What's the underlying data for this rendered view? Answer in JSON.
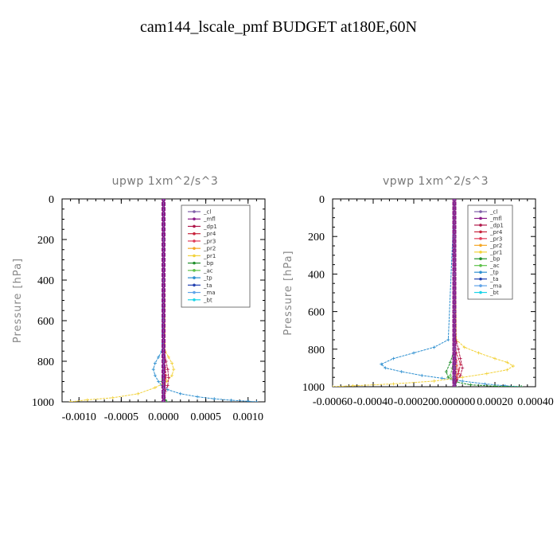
{
  "page_title": "cam144_lscale_pmf  BUDGET at180E,60N",
  "chart_data": [
    {
      "type": "line",
      "title": "upwp   1xm^2/s^3",
      "ylabel": "Pressure [hPa]",
      "xlim": [
        -0.0012,
        0.0012
      ],
      "ylim": [
        1000,
        0
      ],
      "x_ticks": [
        -0.001,
        -0.0005,
        0.0,
        0.0005,
        0.001
      ],
      "x_tick_labels": [
        "-0.0010",
        "-0.0005",
        "0.0000",
        "0.0005",
        "0.0010"
      ],
      "y_ticks": [
        0,
        200,
        400,
        600,
        800,
        1000
      ],
      "y_tick_labels": [
        "0",
        "200",
        "400",
        "600",
        "800",
        "1000"
      ],
      "legend_position": "top-right",
      "series": [
        {
          "name": "_cl",
          "color": "#7f5fa8",
          "x": [
            0,
            0,
            0,
            0,
            0,
            0,
            0,
            0
          ],
          "y": [
            0,
            200,
            400,
            600,
            800,
            900,
            950,
            1000
          ]
        },
        {
          "name": "_mfl",
          "color": "#8b1a89",
          "x": [
            0,
            0,
            0,
            0,
            0,
            0,
            0,
            0,
            0,
            0,
            0,
            0,
            0,
            0,
            0,
            0,
            0,
            0,
            0,
            0,
            0,
            0,
            0,
            0,
            0,
            0,
            0,
            0,
            0,
            0,
            0,
            0,
            0,
            0,
            0,
            0,
            0,
            0,
            0,
            0,
            0
          ],
          "y": [
            0,
            25,
            50,
            75,
            100,
            125,
            150,
            175,
            200,
            225,
            250,
            275,
            300,
            325,
            350,
            375,
            400,
            425,
            450,
            475,
            500,
            525,
            550,
            575,
            600,
            625,
            650,
            675,
            700,
            725,
            750,
            775,
            800,
            825,
            850,
            875,
            900,
            925,
            950,
            975,
            1000
          ]
        },
        {
          "name": "_dp1",
          "color": "#b0174a",
          "x": [
            0,
            0,
            0,
            1e-05,
            3e-05,
            5e-05,
            6e-05,
            5e-05,
            2e-05,
            1e-05,
            0
          ],
          "y": [
            0,
            400,
            700,
            760,
            800,
            840,
            880,
            920,
            950,
            980,
            1000
          ]
        },
        {
          "name": "_pr4",
          "color": "#c8243c",
          "x": [
            0,
            0,
            1e-05,
            2e-05,
            3e-05,
            2e-05,
            1e-05,
            0
          ],
          "y": [
            0,
            700,
            780,
            830,
            870,
            920,
            960,
            1000
          ]
        },
        {
          "name": "_pr3",
          "color": "#e03c5a",
          "x": [
            0,
            0,
            1e-05,
            2e-05,
            1e-05,
            0
          ],
          "y": [
            0,
            760,
            820,
            880,
            940,
            1000
          ]
        },
        {
          "name": "_pr2",
          "color": "#f5a623",
          "x": [
            0,
            0,
            1e-05,
            2e-05,
            1e-05,
            0
          ],
          "y": [
            0,
            760,
            840,
            890,
            950,
            1000
          ]
        },
        {
          "name": "_pr1",
          "color": "#f2d23a",
          "x": [
            0,
            2e-05,
            6e-05,
            0.0001,
            0.00012,
            0.0001,
            4e-05,
            -0.0001,
            -0.0003,
            -0.0006,
            -0.0009,
            -0.0011
          ],
          "y": [
            0,
            750,
            780,
            810,
            840,
            870,
            900,
            930,
            960,
            980,
            990,
            1000
          ]
        },
        {
          "name": "_bp",
          "color": "#1f8f2a",
          "x": [
            0,
            0,
            -2e-05,
            0,
            2e-05,
            4e-05
          ],
          "y": [
            0,
            800,
            900,
            960,
            990,
            1000
          ]
        },
        {
          "name": "_ac",
          "color": "#5ec24a",
          "x": [
            0,
            0,
            -1e-05,
            0,
            1e-05
          ],
          "y": [
            0,
            850,
            930,
            980,
            1000
          ]
        },
        {
          "name": "_tp",
          "color": "#2c8fd0",
          "x": [
            0,
            -2e-05,
            -6e-05,
            -0.0001,
            -0.00012,
            -0.0001,
            -6e-05,
            -2e-05,
            5e-05,
            0.0002,
            0.0004,
            0.0006,
            0.0008,
            0.001,
            0.0011
          ],
          "y": [
            0,
            750,
            780,
            810,
            840,
            870,
            900,
            920,
            940,
            960,
            975,
            985,
            992,
            997,
            1000
          ]
        },
        {
          "name": "_ta",
          "color": "#2240b0",
          "x": [
            0,
            0,
            -1e-05,
            0,
            1e-05
          ],
          "y": [
            0,
            800,
            900,
            960,
            1000
          ]
        },
        {
          "name": "_ma",
          "color": "#5fa3e8",
          "x": [
            0,
            0,
            0
          ],
          "y": [
            0,
            800,
            1000
          ]
        },
        {
          "name": "_bt",
          "color": "#1ad4e8",
          "x": [
            0,
            0,
            0
          ],
          "y": [
            0,
            800,
            1000
          ]
        }
      ]
    },
    {
      "type": "line",
      "title": "vpwp   1xm^2/s^3",
      "ylabel": "Pressure [hPa]",
      "xlim": [
        -0.0006,
        0.0004
      ],
      "ylim": [
        1000,
        0
      ],
      "x_ticks": [
        -0.0006,
        -0.0004,
        -0.0002,
        0.0,
        0.0002,
        0.0004
      ],
      "x_tick_labels": [
        "-0.00060",
        "-0.00040",
        "-0.00020",
        "0.000000",
        "0.00020",
        "0.00040"
      ],
      "y_ticks": [
        0,
        200,
        400,
        600,
        800,
        1000
      ],
      "y_tick_labels": [
        "0",
        "200",
        "400",
        "600",
        "800",
        "1000"
      ],
      "legend_position": "top-right",
      "series": [
        {
          "name": "_cl",
          "color": "#7f5fa8",
          "x": [
            0,
            0,
            0,
            0,
            0,
            0,
            0,
            0
          ],
          "y": [
            0,
            200,
            400,
            600,
            800,
            900,
            950,
            1000
          ]
        },
        {
          "name": "_mfl",
          "color": "#8b1a89",
          "x": [
            0,
            0,
            0,
            0,
            0,
            0,
            0,
            0,
            0,
            0,
            0,
            0,
            0,
            0,
            0,
            0,
            0,
            0,
            0,
            0,
            0,
            0,
            0,
            0,
            0,
            0,
            0,
            0,
            0,
            0,
            0,
            0,
            0,
            0,
            0,
            0,
            0,
            0,
            0,
            0,
            0
          ],
          "y": [
            0,
            25,
            50,
            75,
            100,
            125,
            150,
            175,
            200,
            225,
            250,
            275,
            300,
            325,
            350,
            375,
            400,
            425,
            450,
            475,
            500,
            525,
            550,
            575,
            600,
            625,
            650,
            675,
            700,
            725,
            750,
            775,
            800,
            825,
            850,
            875,
            900,
            925,
            950,
            975,
            1000
          ]
        },
        {
          "name": "_dp1",
          "color": "#b0174a",
          "x": [
            0,
            0,
            1e-05,
            2e-05,
            3e-05,
            4e-05,
            3e-05,
            1e-05,
            0
          ],
          "y": [
            0,
            700,
            760,
            800,
            850,
            900,
            940,
            970,
            1000
          ]
        },
        {
          "name": "_pr4",
          "color": "#c8243c",
          "x": [
            0,
            0,
            1e-05,
            3e-05,
            2e-05,
            1e-05,
            0
          ],
          "y": [
            0,
            760,
            820,
            880,
            930,
            970,
            1000
          ]
        },
        {
          "name": "_pr3",
          "color": "#e03c5a",
          "x": [
            0,
            0,
            1e-05,
            2e-05,
            1e-05,
            0
          ],
          "y": [
            0,
            800,
            860,
            910,
            960,
            1000
          ]
        },
        {
          "name": "_pr2",
          "color": "#f5a623",
          "x": [
            0,
            0,
            1e-05,
            1e-05,
            0
          ],
          "y": [
            0,
            820,
            890,
            950,
            1000
          ]
        },
        {
          "name": "_pr1",
          "color": "#f2d23a",
          "x": [
            0,
            1e-05,
            5e-05,
            0.00012,
            0.0002,
            0.00026,
            0.00029,
            0.00026,
            0.00016,
            4e-05,
            -0.0001,
            -0.0003,
            -0.0005,
            -0.0006
          ],
          "y": [
            0,
            750,
            790,
            820,
            850,
            870,
            890,
            910,
            930,
            950,
            970,
            985,
            995,
            1000
          ]
        },
        {
          "name": "_bp",
          "color": "#1f8f2a",
          "x": [
            0,
            0,
            -2e-05,
            -4e-05,
            -3e-05,
            1e-05,
            8e-05,
            0.0002,
            0.00033
          ],
          "y": [
            0,
            800,
            870,
            920,
            950,
            975,
            990,
            997,
            1000
          ]
        },
        {
          "name": "_ac",
          "color": "#5ec24a",
          "x": [
            0,
            0,
            -1e-05,
            -2e-05,
            0,
            1e-05
          ],
          "y": [
            0,
            850,
            900,
            940,
            980,
            1000
          ]
        },
        {
          "name": "_tp",
          "color": "#2c8fd0",
          "x": [
            0,
            -3e-05,
            -0.0001,
            -0.0002,
            -0.0003,
            -0.00036,
            -0.00034,
            -0.00026,
            -0.00016,
            -6e-05,
            4e-05,
            0.00015,
            0.00025,
            0.00033
          ],
          "y": [
            0,
            750,
            790,
            820,
            850,
            880,
            900,
            920,
            940,
            955,
            970,
            985,
            995,
            1000
          ]
        },
        {
          "name": "_ta",
          "color": "#2240b0",
          "x": [
            0,
            0,
            -1e-05,
            0,
            1e-05
          ],
          "y": [
            0,
            800,
            900,
            960,
            1000
          ]
        },
        {
          "name": "_ma",
          "color": "#5fa3e8",
          "x": [
            0,
            0,
            0
          ],
          "y": [
            0,
            800,
            1000
          ]
        },
        {
          "name": "_bt",
          "color": "#1ad4e8",
          "x": [
            0,
            0,
            0
          ],
          "y": [
            0,
            800,
            1000
          ]
        }
      ]
    }
  ]
}
